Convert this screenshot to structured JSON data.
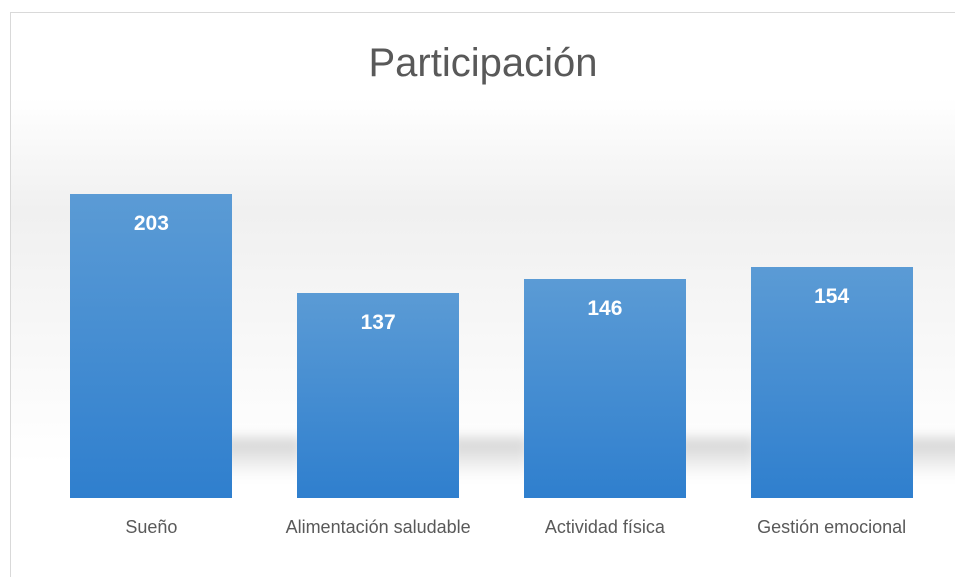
{
  "chart_data": {
    "type": "bar",
    "title": "Participación",
    "categories": [
      "Sueño",
      "Alimentación saludable",
      "Actividad física",
      "Gestión emocional"
    ],
    "values": [
      203,
      137,
      146,
      154
    ],
    "color": "#4a90d9"
  }
}
